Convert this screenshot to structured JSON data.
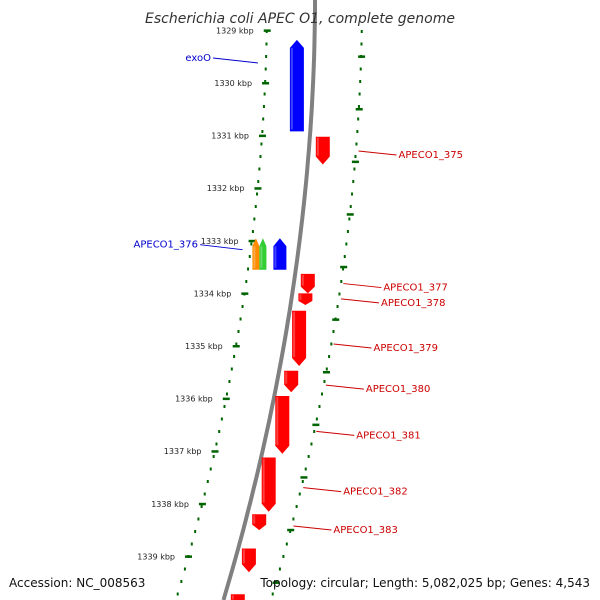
{
  "title": "Escherichia coli APEC O1, complete genome",
  "footer": {
    "accession": "Accession: NC_008563",
    "summary": "Topology: circular; Length: 5,082,025 bp; Genes: 4,543"
  },
  "colors": {
    "backbone": "#808080",
    "plus_strand": "#0000ff",
    "minus_strand": "#ff0000",
    "tick": "#006400",
    "label_plus": "#0000cc",
    "label_minus": "#cc0000",
    "orange_feature": "#ff8c00",
    "green_feature": "#32cd32"
  },
  "ticks": [
    {
      "kbp": 1329,
      "label": "1329 kbp"
    },
    {
      "kbp": 1330,
      "label": "1330 kbp"
    },
    {
      "kbp": 1331,
      "label": "1331 kbp"
    },
    {
      "kbp": 1332,
      "label": "1332 kbp"
    },
    {
      "kbp": 1333,
      "label": "1333 kbp"
    },
    {
      "kbp": 1334,
      "label": "1334 kbp"
    },
    {
      "kbp": 1335,
      "label": "1335 kbp"
    },
    {
      "kbp": 1336,
      "label": "1336 kbp"
    },
    {
      "kbp": 1337,
      "label": "1337 kbp"
    },
    {
      "kbp": 1338,
      "label": "1338 kbp"
    },
    {
      "kbp": 1339,
      "label": "1339 kbp"
    }
  ],
  "genes": [
    {
      "name": "exoO",
      "strand": "+",
      "start_kbp": 1329.18,
      "end_kbp": 1330.92
    },
    {
      "name": "APECO1_376",
      "strand": "+",
      "start_kbp": 1332.95,
      "end_kbp": 1333.55
    },
    {
      "name": "",
      "strand": "+",
      "start_kbp": 1332.95,
      "end_kbp": 1333.55,
      "color": "orange"
    },
    {
      "name": "",
      "strand": "+",
      "start_kbp": 1332.95,
      "end_kbp": 1333.55,
      "color": "green"
    },
    {
      "name": "APECO1_375",
      "strand": "-",
      "start_kbp": 1331.02,
      "end_kbp": 1331.55
    },
    {
      "name": "APECO1_377",
      "strand": "-",
      "start_kbp": 1333.63,
      "end_kbp": 1334.0
    },
    {
      "name": "APECO1_378",
      "strand": "-",
      "start_kbp": 1334.0,
      "end_kbp": 1334.22
    },
    {
      "name": "APECO1_379",
      "strand": "-",
      "start_kbp": 1334.33,
      "end_kbp": 1335.38
    },
    {
      "name": "APECO1_380",
      "strand": "-",
      "start_kbp": 1335.47,
      "end_kbp": 1335.88
    },
    {
      "name": "APECO1_381",
      "strand": "-",
      "start_kbp": 1335.95,
      "end_kbp": 1337.05
    },
    {
      "name": "APECO1_382",
      "strand": "-",
      "start_kbp": 1337.12,
      "end_kbp": 1338.15
    },
    {
      "name": "APECO1_383",
      "strand": "-",
      "start_kbp": 1338.2,
      "end_kbp": 1338.5
    },
    {
      "name": "",
      "strand": "-",
      "start_kbp": 1338.85,
      "end_kbp": 1339.3
    },
    {
      "name": "",
      "strand": "-",
      "start_kbp": 1339.72,
      "end_kbp": 1339.9
    }
  ],
  "labels": [
    {
      "text": "exoO",
      "strand": "+",
      "side": "left",
      "anchor_kbp": 1329.6
    },
    {
      "text": "APECO1_376",
      "strand": "+",
      "side": "left",
      "anchor_kbp": 1333.15
    },
    {
      "text": "APECO1_375",
      "strand": "-",
      "side": "right",
      "anchor_kbp": 1331.35
    },
    {
      "text": "APECO1_377",
      "strand": "-",
      "side": "right",
      "anchor_kbp": 1333.87
    },
    {
      "text": "APECO1_378",
      "strand": "-",
      "side": "right",
      "anchor_kbp": 1334.16
    },
    {
      "text": "APECO1_379",
      "strand": "-",
      "side": "right",
      "anchor_kbp": 1335.02
    },
    {
      "text": "APECO1_380",
      "strand": "-",
      "side": "right",
      "anchor_kbp": 1335.8
    },
    {
      "text": "APECO1_381",
      "strand": "-",
      "side": "right",
      "anchor_kbp": 1336.68
    },
    {
      "text": "APECO1_382",
      "strand": "-",
      "side": "right",
      "anchor_kbp": 1337.75
    },
    {
      "text": "APECO1_383",
      "strand": "-",
      "side": "right",
      "anchor_kbp": 1338.48
    }
  ]
}
